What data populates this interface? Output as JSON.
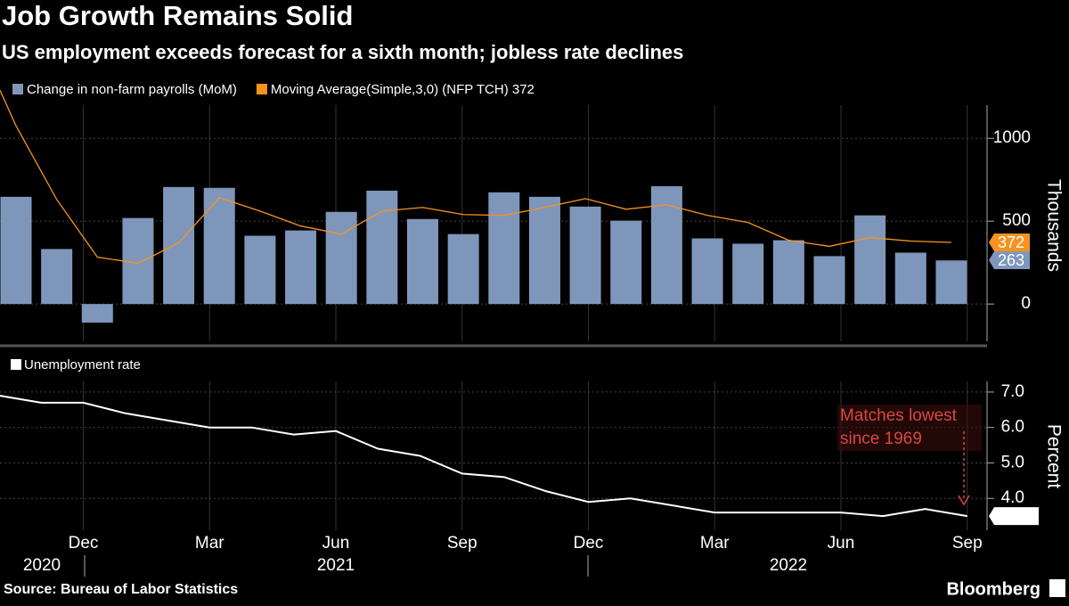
{
  "title": "Job Growth Remains Solid",
  "subtitle": "US employment exceeds forecast for a sixth month; jobless rate declines",
  "source": "Source: Bureau of Labor Statistics",
  "brand": "Bloomberg",
  "chart_data": [
    {
      "type": "bar",
      "y_label": "Thousands",
      "ylim": [
        -225,
        1200
      ],
      "yticks": [
        0,
        500,
        1000
      ],
      "grid": true,
      "series": [
        {
          "name": "Change in non-farm payrolls (MoM)",
          "color": "#7f96bb",
          "kind": "bar",
          "values": [
            647,
            332,
            -112,
            519,
            706,
            701,
            412,
            444,
            556,
            684,
            513,
            422,
            674,
            647,
            588,
            503,
            711,
            396,
            364,
            385,
            289,
            535,
            310,
            263
          ]
        },
        {
          "name": "Moving Average(Simple,3,0) (NFP TCH) 372",
          "color": "#f7931e",
          "kind": "line",
          "values": [
            1075,
            631,
            283,
            246,
            369,
            642,
            561,
            471,
            422,
            561,
            583,
            540,
            535,
            583,
            636,
            572,
            599,
            535,
            492,
            385,
            348,
            401,
            380,
            372
          ]
        }
      ]
    },
    {
      "type": "line",
      "y_label": "Percent",
      "categories": [
        null,
        null,
        "Dec",
        null,
        null,
        "Mar",
        null,
        null,
        "Jun",
        null,
        null,
        "Sep",
        null,
        null,
        "Dec",
        null,
        null,
        "Mar",
        null,
        null,
        "Jun",
        null,
        null,
        "Sep"
      ],
      "year_labels": [
        "2020",
        "2021",
        "2022"
      ],
      "ylim": [
        3.1,
        7.3
      ],
      "yticks": [
        {
          "value": 4,
          "label": "4.0"
        },
        {
          "value": 5,
          "label": "5.0"
        },
        {
          "value": 6,
          "label": "6.0"
        },
        {
          "value": 7,
          "label": "7.0"
        }
      ],
      "grid": true,
      "annotation": "Matches lowest since 1969",
      "annotation_color": "#d9473f",
      "series": [
        {
          "name": "Unemployment rate",
          "color": "#ffffff",
          "values": [
            6.9,
            6.7,
            6.7,
            6.4,
            6.2,
            6.0,
            6.0,
            5.8,
            5.9,
            5.4,
            5.2,
            4.7,
            4.6,
            4.2,
            3.9,
            4.0,
            3.8,
            3.6,
            3.6,
            3.6,
            3.6,
            3.5,
            3.7,
            3.5
          ]
        }
      ]
    }
  ]
}
